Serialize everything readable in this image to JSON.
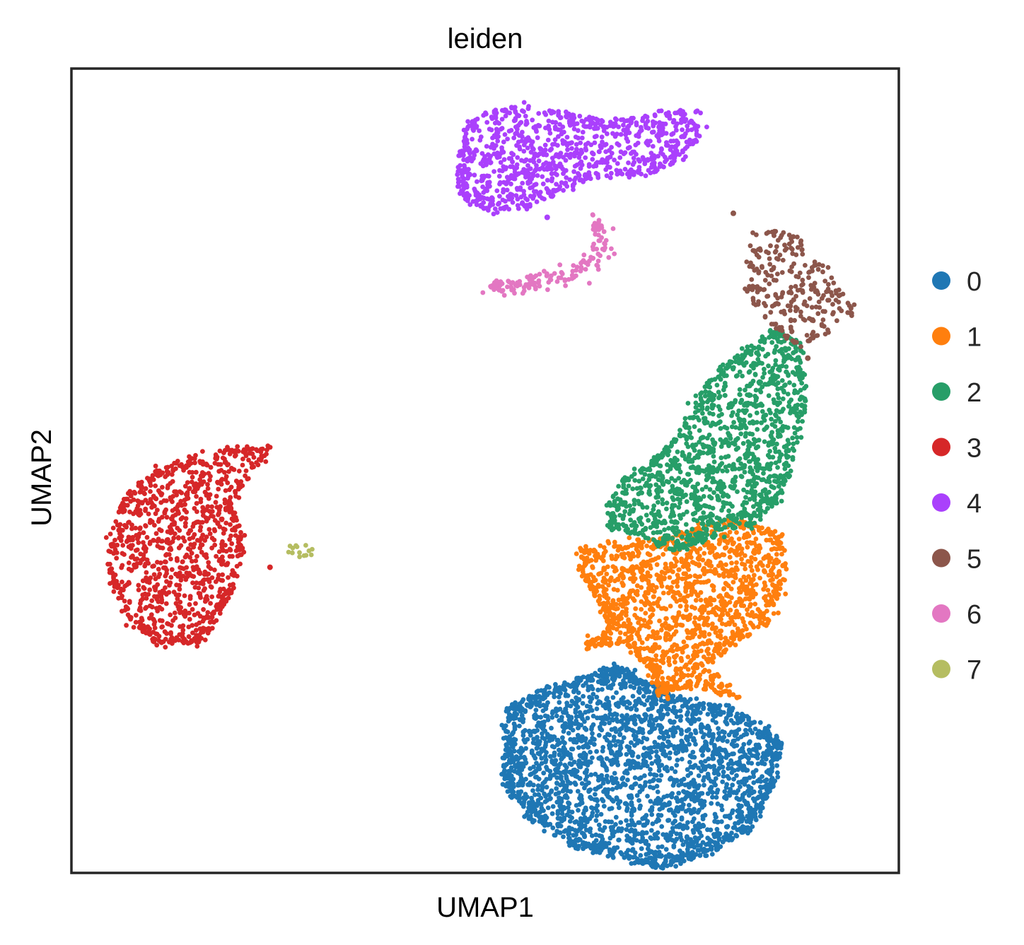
{
  "chart_data": {
    "type": "scatter",
    "title": "leiden",
    "xlabel": "UMAP1",
    "ylabel": "UMAP2",
    "grid": false,
    "ticks": false,
    "legend_position": "right",
    "xlim": [
      0,
      100
    ],
    "ylim": [
      0,
      100
    ],
    "series": [
      {
        "name": "0",
        "color": "#1f77b4",
        "shape": "blob",
        "n": 2600,
        "centroid": [
          71.5,
          12.5
        ],
        "outline": [
          [
            52.5,
            20.5
          ],
          [
            57,
            23
          ],
          [
            62,
            24.5
          ],
          [
            66,
            26
          ],
          [
            69,
            24
          ],
          [
            73,
            22
          ],
          [
            78,
            21
          ],
          [
            83,
            19
          ],
          [
            86,
            16
          ],
          [
            85,
            11
          ],
          [
            82,
            5
          ],
          [
            76,
            2
          ],
          [
            71,
            0.5
          ],
          [
            67,
            1.5
          ],
          [
            61,
            3
          ],
          [
            56,
            6
          ],
          [
            52.5,
            10
          ],
          [
            52,
            14
          ]
        ]
      },
      {
        "name": "1",
        "color": "#ff7f0e",
        "shape": "blob",
        "n": 1500,
        "centroid": [
          71.5,
          37.5
        ],
        "outline": [
          [
            61,
            40
          ],
          [
            66,
            41
          ],
          [
            71,
            41.5
          ],
          [
            76,
            43
          ],
          [
            81,
            44
          ],
          [
            86,
            42
          ],
          [
            86.5,
            37
          ],
          [
            84.5,
            31
          ],
          [
            80,
            28.5
          ],
          [
            76.5,
            25
          ],
          [
            81,
            21.5
          ],
          [
            75.5,
            23
          ],
          [
            72,
            22.5
          ],
          [
            71,
            21.5
          ],
          [
            70,
            25
          ],
          [
            67,
            28.5
          ],
          [
            62,
            28
          ],
          [
            65,
            30
          ],
          [
            63.5,
            34
          ],
          [
            61.5,
            37
          ]
        ]
      },
      {
        "name": "2",
        "color": "#279e68",
        "shape": "blob",
        "n": 1350,
        "centroid": [
          79,
          54.5
        ],
        "outline": [
          [
            85,
            68
          ],
          [
            88,
            66
          ],
          [
            89,
            59
          ],
          [
            87.5,
            52
          ],
          [
            85.5,
            46
          ],
          [
            82,
            43
          ],
          [
            76,
            41
          ],
          [
            73,
            40
          ],
          [
            69,
            41.5
          ],
          [
            65,
            43
          ],
          [
            64.5,
            46
          ],
          [
            67,
            49
          ],
          [
            70,
            51
          ],
          [
            73,
            54
          ],
          [
            75.5,
            59
          ],
          [
            78.5,
            63
          ],
          [
            83,
            66
          ]
        ]
      },
      {
        "name": "3",
        "color": "#d62728",
        "shape": "blob",
        "n": 1050,
        "centroid": [
          14,
          39
        ],
        "outline": [
          [
            10,
            50
          ],
          [
            15,
            52
          ],
          [
            21,
            53
          ],
          [
            24,
            53
          ],
          [
            21,
            49
          ],
          [
            19,
            46
          ],
          [
            21,
            42
          ],
          [
            20,
            36
          ],
          [
            16,
            28.5
          ],
          [
            11,
            28
          ],
          [
            7,
            31
          ],
          [
            4.5,
            36
          ],
          [
            4.5,
            42
          ],
          [
            6.5,
            47
          ]
        ]
      },
      {
        "name": "4",
        "color": "#aa40fc",
        "shape": "blob",
        "n": 950,
        "centroid": [
          53,
          88
        ],
        "outline": [
          [
            47.5,
            93
          ],
          [
            51,
            95
          ],
          [
            56,
            95.5
          ],
          [
            60.5,
            94.5
          ],
          [
            65,
            93.5
          ],
          [
            71,
            94.5
          ],
          [
            76,
            95
          ],
          [
            76.5,
            92.5
          ],
          [
            74.5,
            89
          ],
          [
            70,
            87
          ],
          [
            66.5,
            87
          ],
          [
            62,
            86
          ],
          [
            58,
            84
          ],
          [
            54,
            82.5
          ],
          [
            50,
            82.5
          ],
          [
            47,
            84
          ],
          [
            46.5,
            88
          ]
        ]
      },
      {
        "name": "5",
        "color": "#8c564b",
        "shape": "blob",
        "n": 270,
        "centroid": [
          85.5,
          73
        ],
        "outline": [
          [
            82.5,
            80
          ],
          [
            85,
            80
          ],
          [
            88,
            79
          ],
          [
            91.5,
            75
          ],
          [
            95,
            70
          ],
          [
            92,
            67.5
          ],
          [
            88,
            65
          ],
          [
            85.5,
            67.5
          ],
          [
            83,
            69.5
          ],
          [
            81.5,
            73
          ],
          [
            82,
            76.5
          ]
        ]
      },
      {
        "name": "6",
        "color": "#e377c2",
        "shape": "arc",
        "n": 150,
        "arc": [
          [
            63,
            81
          ],
          [
            64.5,
            79
          ],
          [
            64,
            77
          ],
          [
            62,
            75.5
          ],
          [
            59,
            74
          ],
          [
            56,
            73.5
          ],
          [
            54,
            73
          ],
          [
            52,
            73
          ],
          [
            50.5,
            73
          ]
        ]
      },
      {
        "name": "7",
        "color": "#b5bd61",
        "shape": "blob",
        "n": 14,
        "centroid": [
          27.5,
          40
        ],
        "outline": [
          [
            26,
            40.5
          ],
          [
            27.5,
            41
          ],
          [
            29,
            40.5
          ],
          [
            29.5,
            39.5
          ],
          [
            27.5,
            39
          ],
          [
            26,
            39.5
          ]
        ]
      }
    ],
    "outliers": [
      {
        "series": "5",
        "x": 80,
        "y": 82
      },
      {
        "series": "5",
        "x": 89,
        "y": 64
      },
      {
        "series": "4",
        "x": 57.5,
        "y": 81.5
      },
      {
        "series": "3",
        "x": 24,
        "y": 38
      }
    ]
  }
}
